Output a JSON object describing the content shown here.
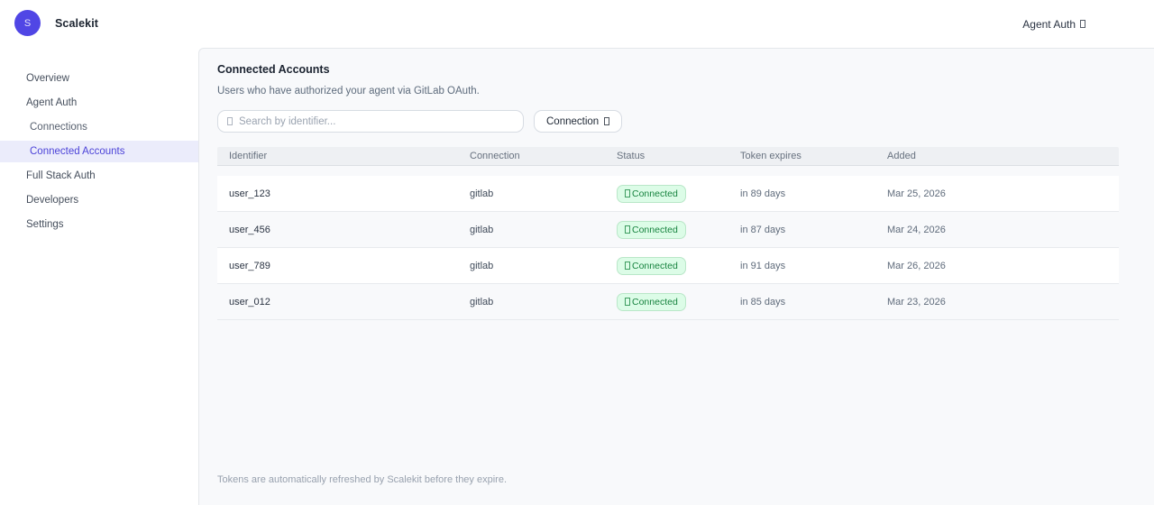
{
  "brand": {
    "logo_letter": "S",
    "name": "Scalekit"
  },
  "topnav": {
    "label": "Agent Auth"
  },
  "sidebar": {
    "items": [
      {
        "label": "Overview"
      },
      {
        "label": "Agent Auth"
      },
      {
        "label": "Connections"
      },
      {
        "label": "Connected Accounts"
      },
      {
        "label": "Full Stack Auth"
      },
      {
        "label": "Developers"
      },
      {
        "label": "Settings"
      }
    ],
    "active_item": "Connected Accounts"
  },
  "main": {
    "title": "Connected Accounts",
    "subtitle": "Users who have authorized your agent via GitLab OAuth.",
    "search": {
      "placeholder": "Search by identifier...",
      "value": ""
    },
    "filter_button": {
      "label": "Connection"
    },
    "table": {
      "columns": [
        "Identifier",
        "Connection",
        "Status",
        "Token expires",
        "Added"
      ],
      "rows": [
        {
          "identifier": "user_123",
          "connection": "gitlab",
          "status": "Connected",
          "token_expires": "in 89 days",
          "added": "Mar 25, 2026"
        },
        {
          "identifier": "user_456",
          "connection": "gitlab",
          "status": "Connected",
          "token_expires": "in 87 days",
          "added": "Mar 24, 2026"
        },
        {
          "identifier": "user_789",
          "connection": "gitlab",
          "status": "Connected",
          "token_expires": "in 91 days",
          "added": "Mar 26, 2026"
        },
        {
          "identifier": "user_012",
          "connection": "gitlab",
          "status": "Connected",
          "token_expires": "in 85 days",
          "added": "Mar 23, 2026"
        }
      ]
    },
    "footer_note": "Tokens are automatically refreshed by Scalekit before they expire."
  },
  "icons": {
    "search": "tofu-box (unrendered glyph)",
    "filter_chevron": "tofu-box (unrendered glyph)",
    "topnav_trailing": "tofu-box (unrendered glyph)",
    "badge_status": "tofu-box (unrendered glyph)"
  },
  "colors": {
    "accent": "#5046e5",
    "sidebar_active_bg": "#ebecfb",
    "sidebar_active_text": "#4c43d8",
    "panel_bg": "#f8f9fb",
    "panel_border": "#e4e7eb",
    "badge_bg": "#dcfce7",
    "badge_border": "#b9e7c8",
    "badge_text": "#17833f"
  }
}
